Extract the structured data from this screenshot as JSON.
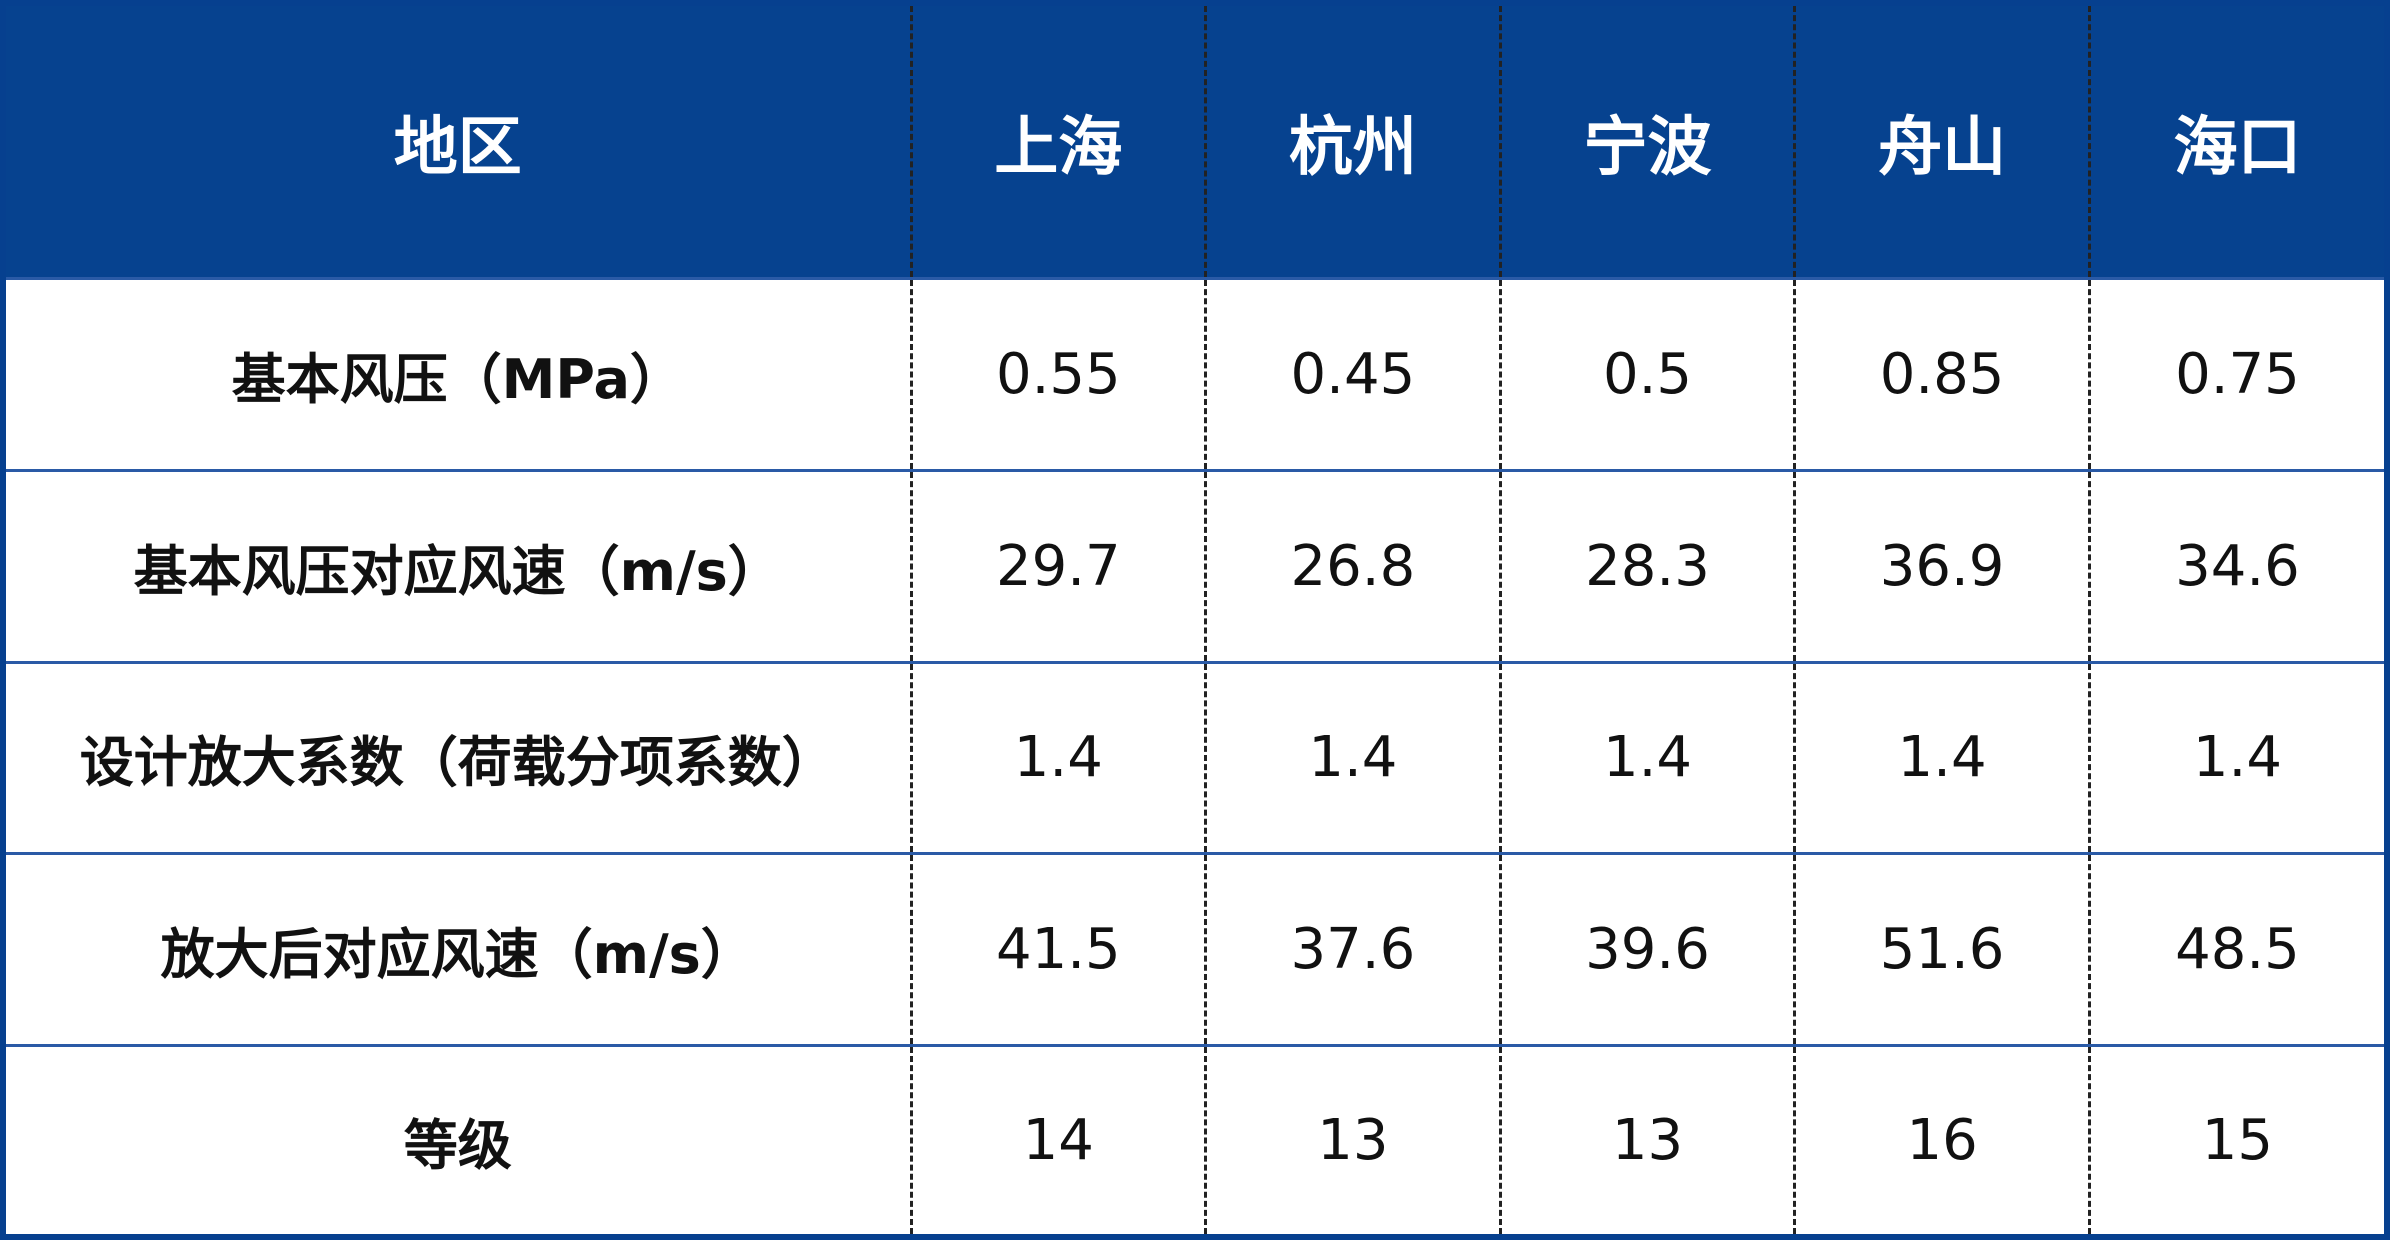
{
  "table": {
    "header": [
      "地区",
      "上海",
      "杭州",
      "宁波",
      "舟山",
      "海口"
    ],
    "rows": [
      [
        "基本风压（MPa）",
        "0.55",
        "0.45",
        "0.5",
        "0.85",
        "0.75"
      ],
      [
        "基本风压对应风速（m/s）",
        "29.7",
        "26.8",
        "28.3",
        "36.9",
        "34.6"
      ],
      [
        "设计放大系数（荷载分项系数）",
        "1.4",
        "1.4",
        "1.4",
        "1.4",
        "1.4"
      ],
      [
        "放大后对应风速（m/s）",
        "41.5",
        "37.6",
        "39.6",
        "51.6",
        "48.5"
      ],
      [
        "等级",
        "14",
        "13",
        "13",
        "16",
        "15"
      ]
    ]
  }
}
